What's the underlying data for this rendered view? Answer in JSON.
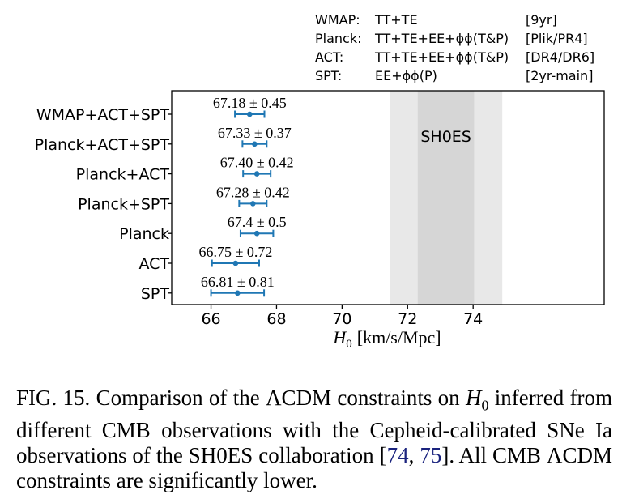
{
  "legend_table": [
    {
      "survey": "WMAP:",
      "data": "TT+TE",
      "release": "[9yr]"
    },
    {
      "survey": "Planck:",
      "data": "TT+TE+EE+ϕϕ(T&P)",
      "release": "[Plik/PR4]"
    },
    {
      "survey": "ACT:",
      "data": "TT+TE+EE+ϕϕ(T&P)",
      "release": "[DR4/DR6]"
    },
    {
      "survey": "SPT:",
      "data": "EE+ϕϕ(P)",
      "release": "[2yr-main]"
    }
  ],
  "chart_data": {
    "type": "errorbar",
    "title": "",
    "xlabel": "H₀ [km/s/Mpc]",
    "xlabel_parts": {
      "symbol": "H",
      "subscript": "0",
      "units": "[km/s/Mpc]"
    },
    "xlim": [
      64.8,
      78.0
    ],
    "xticks": [
      66,
      68,
      70,
      72,
      74
    ],
    "color": "#1f77b4",
    "series": [
      {
        "name": "WMAP+ACT+SPT",
        "value": 67.18,
        "err": 0.45,
        "label": "67.18 ± 0.45"
      },
      {
        "name": "Planck+ACT+SPT",
        "value": 67.33,
        "err": 0.37,
        "label": "67.33 ± 0.37"
      },
      {
        "name": "Planck+ACT",
        "value": 67.4,
        "err": 0.42,
        "label": "67.40 ± 0.42"
      },
      {
        "name": "Planck+SPT",
        "value": 67.28,
        "err": 0.42,
        "label": "67.28 ± 0.42"
      },
      {
        "name": "Planck",
        "value": 67.4,
        "err": 0.5,
        "label": "67.4 ± 0.5"
      },
      {
        "name": "ACT",
        "value": 66.75,
        "err": 0.72,
        "label": "66.75 ± 0.72"
      },
      {
        "name": "SPT",
        "value": 66.81,
        "err": 0.81,
        "label": "66.81 ± 0.81"
      }
    ],
    "band": {
      "label": "SH0ES",
      "center": 73.17,
      "sigma1": [
        72.31,
        74.03
      ],
      "sigma2": [
        71.45,
        74.89
      ],
      "color_inner": "#d6d6d6",
      "color_outer": "#e8e8e8"
    }
  },
  "caption": {
    "prefix": "FIG. 15.  Comparison of the ΛCDM constraints on ",
    "h0_symbol": "H",
    "h0_sub": "0",
    "middle": " inferred from different CMB observations with the Cepheid-calibrated SNe Ia observations of the SH0ES collaboration [",
    "ref1": "74",
    "sep": ", ",
    "ref2": "75",
    "suffix": "].  All CMB ΛCDM constraints are significantly lower."
  }
}
